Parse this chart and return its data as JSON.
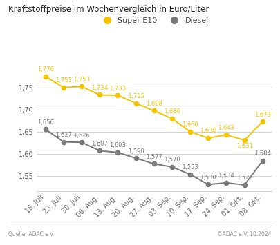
{
  "title": "Kraftstoffpreise im Wochenvergleich in Euro/Liter",
  "x_labels": [
    "16. Juli",
    "23. Juli",
    "30. Juli",
    "06. Aug.",
    "13. Aug.",
    "20. Aug.",
    "27. Aug.",
    "03. Sep.",
    "10. Sep.",
    "17. Sep.",
    "24. Sep.",
    "01. Okt.",
    "08. Okt."
  ],
  "super_e10": [
    1.776,
    1.751,
    1.753,
    1.734,
    1.733,
    1.715,
    1.698,
    1.68,
    1.65,
    1.636,
    1.643,
    1.631,
    1.673
  ],
  "diesel": [
    1.656,
    1.627,
    1.626,
    1.607,
    1.603,
    1.59,
    1.577,
    1.57,
    1.553,
    1.53,
    1.534,
    1.529,
    1.584
  ],
  "super_color": "#F5C400",
  "diesel_color": "#787878",
  "ylim_min": 1.515,
  "ylim_max": 1.805,
  "yticks": [
    1.55,
    1.6,
    1.65,
    1.7,
    1.75
  ],
  "ytick_labels": [
    "1,55",
    "1,60",
    "1,65",
    "1,70",
    "1,75"
  ],
  "footer_left": "Quelle: ADAC e.V.",
  "footer_right": "©ADAC e.V. 10.2024",
  "legend_super": "Super E10",
  "legend_diesel": "Diesel",
  "background_color": "#ffffff",
  "grid_color": "#cccccc",
  "label_fontsize": 6.0,
  "title_fontsize": 8.5,
  "footer_fontsize": 5.5,
  "tick_fontsize": 7.0,
  "line_width": 1.4,
  "marker_size": 4.5,
  "legend_fontsize": 8.0
}
